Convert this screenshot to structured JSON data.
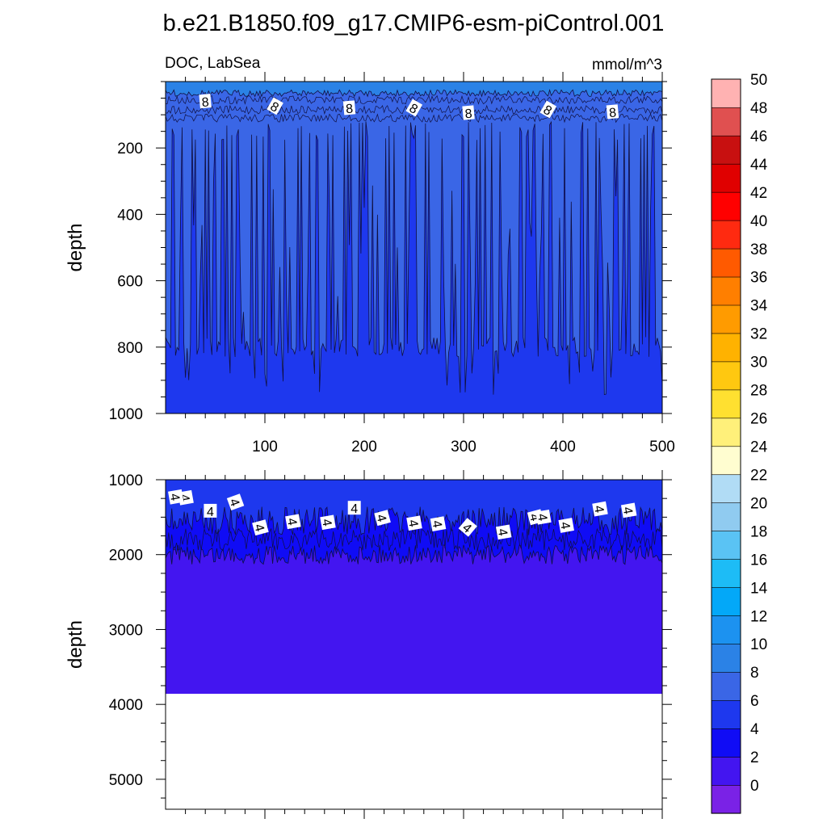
{
  "figure": {
    "title": "b.e21.B1850.f09_g17.CMIP6-esm-piControl.001",
    "left_label": "DOC, LabSea",
    "units": "mmol/m^3"
  },
  "chart_data": [
    {
      "type": "heatmap",
      "panel": "upper",
      "subtitle": "DOC, LabSea",
      "units": "mmol/m^3",
      "ylabel": "depth",
      "xlabel": "",
      "xlim": [
        0,
        500
      ],
      "ylim": [
        1000,
        0
      ],
      "y_inverted": true,
      "x_ticks": [
        100,
        200,
        300,
        400,
        500
      ],
      "x_tick_labels": [
        "100",
        "200",
        "300",
        "400",
        "500"
      ],
      "y_ticks": [
        200,
        400,
        600,
        800,
        1000
      ],
      "y_tick_labels": [
        "200",
        "400",
        "600",
        "800",
        "1000"
      ],
      "contour_labels": [
        "8",
        "8",
        "8",
        "8",
        "8",
        "8",
        "8"
      ],
      "contour_label_x": [
        40,
        110,
        185,
        250,
        305,
        385,
        450
      ],
      "contour_label_depth": [
        60,
        75,
        80,
        80,
        95,
        85,
        92
      ],
      "contour_levels": [
        10,
        8,
        6
      ],
      "contour_level_colors": [
        "#2b82e6",
        "#3a66e6",
        "#1e38ee"
      ],
      "band_10_base_depth": 25,
      "band_8_base_depth": 110,
      "band_6_top_depth": 800
    },
    {
      "type": "heatmap",
      "panel": "lower",
      "ylabel": "depth",
      "xlabel": "",
      "xlim": [
        0,
        500
      ],
      "ylim": [
        5400,
        1000
      ],
      "y_inverted": true,
      "x_ticks": [
        100,
        200,
        300,
        400,
        500
      ],
      "y_ticks": [
        1000,
        2000,
        3000,
        4000,
        5000
      ],
      "y_tick_labels": [
        "1000",
        "2000",
        "3000",
        "4000",
        "5000"
      ],
      "ocean_bottom_depth": 3860,
      "contour_labels": [
        "4",
        "4",
        "4",
        "4",
        "4",
        "4",
        "4",
        "4",
        "4",
        "4",
        "4",
        "4",
        "4",
        "4",
        "4",
        "4",
        "4",
        "4"
      ],
      "contour_label_x": [
        20,
        45,
        70,
        95,
        128,
        163,
        190,
        218,
        250,
        274,
        304,
        340,
        372,
        403,
        437,
        466,
        10,
        380
      ],
      "contour_label_depth": [
        1240,
        1420,
        1300,
        1640,
        1560,
        1570,
        1380,
        1510,
        1580,
        1590,
        1640,
        1700,
        1500,
        1610,
        1390,
        1410,
        1230,
        1500
      ],
      "contour_levels": [
        6,
        4,
        2
      ],
      "contour_level_colors": [
        "#1e38ee",
        "#100cf5",
        "#4315f0"
      ],
      "band_6_base_depth": 1550,
      "band_4_base_depth": 2000
    }
  ],
  "colorbar": {
    "colors": [
      "#7a22e6",
      "#4315f0",
      "#100cf5",
      "#1e38ee",
      "#3a66e6",
      "#2b82e6",
      "#1c92f0",
      "#03a8f8",
      "#1dbcf6",
      "#5ac3f4",
      "#90cbf0",
      "#b1dcf5",
      "#fffdd0",
      "#fff07a",
      "#ffe030",
      "#ffc810",
      "#ffb200",
      "#ff9b00",
      "#ff7f00",
      "#ff5a00",
      "#ff2a10",
      "#ff0000",
      "#e00000",
      "#c81010",
      "#e05050",
      "#ffb2b2"
    ],
    "labels": [
      "0",
      "2",
      "4",
      "6",
      "8",
      "10",
      "12",
      "14",
      "16",
      "18",
      "20",
      "22",
      "24",
      "26",
      "28",
      "30",
      "32",
      "34",
      "36",
      "38",
      "40",
      "42",
      "44",
      "46",
      "48",
      "50"
    ]
  }
}
